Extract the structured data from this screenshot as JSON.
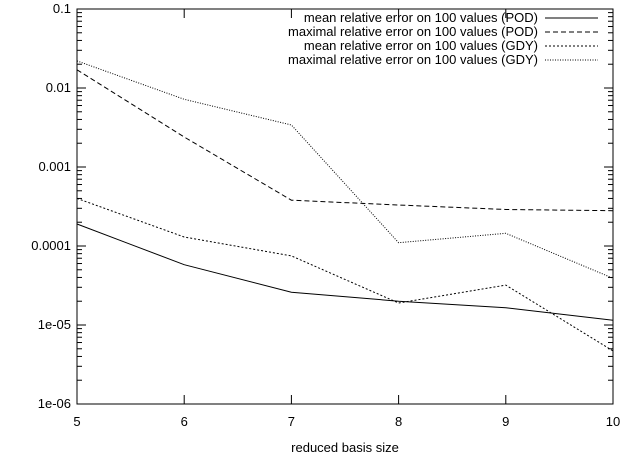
{
  "chart_data": {
    "type": "line",
    "title": "",
    "xlabel": "reduced basis size",
    "ylabel": "",
    "x": [
      5,
      6,
      7,
      8,
      9,
      10
    ],
    "xticks": [
      5,
      6,
      7,
      8,
      9,
      10
    ],
    "xlim": [
      5,
      10
    ],
    "yscale": "log",
    "ylim": [
      1e-06,
      0.1
    ],
    "yticks": [
      1e-06,
      1e-05,
      0.0001,
      0.001,
      0.01,
      0.1
    ],
    "ytick_labels": [
      "1e-06",
      "1e-05",
      "0.0001",
      "0.001",
      "0.01",
      "0.1"
    ],
    "grid": false,
    "legend_position": "top-right",
    "series": [
      {
        "name": "mean relative error on 100 values (POD)",
        "values": [
          0.00019,
          5.8e-05,
          2.6e-05,
          2e-05,
          1.65e-05,
          1.15e-05
        ],
        "color": "#000000",
        "dash": "solid"
      },
      {
        "name": "maximal relative error on 100 values (POD)",
        "values": [
          0.017,
          0.0024,
          0.00038,
          0.00033,
          0.00029,
          0.00028
        ],
        "color": "#000000",
        "dash": "dashed"
      },
      {
        "name": "mean relative error on 100 values (GDY)",
        "values": [
          0.0004,
          0.00013,
          7.5e-05,
          1.9e-05,
          3.2e-05,
          4.7e-06
        ],
        "color": "#000000",
        "dash": "dotted"
      },
      {
        "name": "maximal relative error on 100 values (GDY)",
        "values": [
          0.022,
          0.0072,
          0.0034,
          0.00011,
          0.000145,
          3.9e-05
        ],
        "color": "#000000",
        "dash": "fine-dotted"
      }
    ]
  }
}
